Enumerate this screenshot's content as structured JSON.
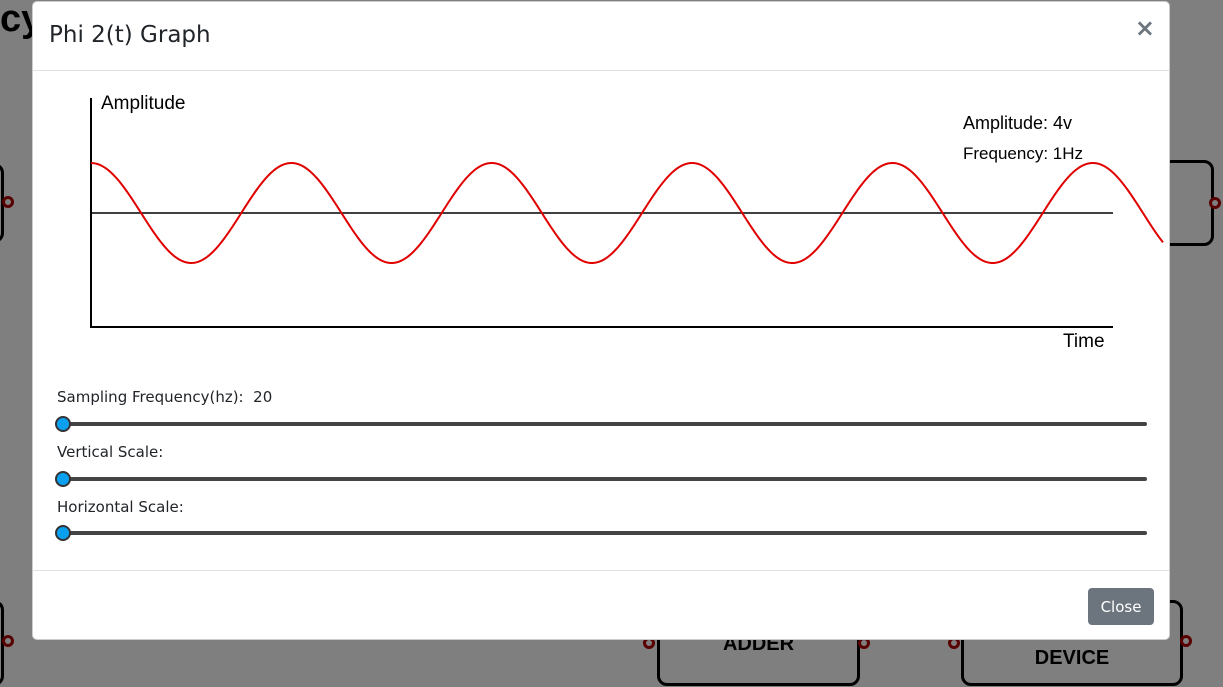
{
  "background": {
    "title_fragment": "cy",
    "blocks": [
      {
        "label": ""
      },
      {
        "label": "ADDER"
      },
      {
        "label": "DEVICE"
      },
      {
        "label": ""
      },
      {
        "label": ""
      }
    ]
  },
  "modal": {
    "title": "Phi 2(t) Graph",
    "close_icon": "×",
    "close_button_label": "Close"
  },
  "graph": {
    "y_axis_label": "Amplitude",
    "x_axis_label": "Time",
    "amplitude_text": "Amplitude: 4v",
    "frequency_text": "Frequency: 1Hz",
    "wave_color": "#e00000",
    "axis_color": "#000000",
    "cycles_visible": 5.35
  },
  "controls": {
    "sampling": {
      "label": "Sampling Frequency(hz):",
      "value": "20",
      "fraction": 0
    },
    "vertical": {
      "label": "Vertical Scale:",
      "fraction": 0
    },
    "horizontal": {
      "label": "Horizontal Scale:",
      "fraction": 0
    }
  },
  "colors": {
    "slider_thumb": "#0aa0f0",
    "close_button": "#6c757d"
  }
}
